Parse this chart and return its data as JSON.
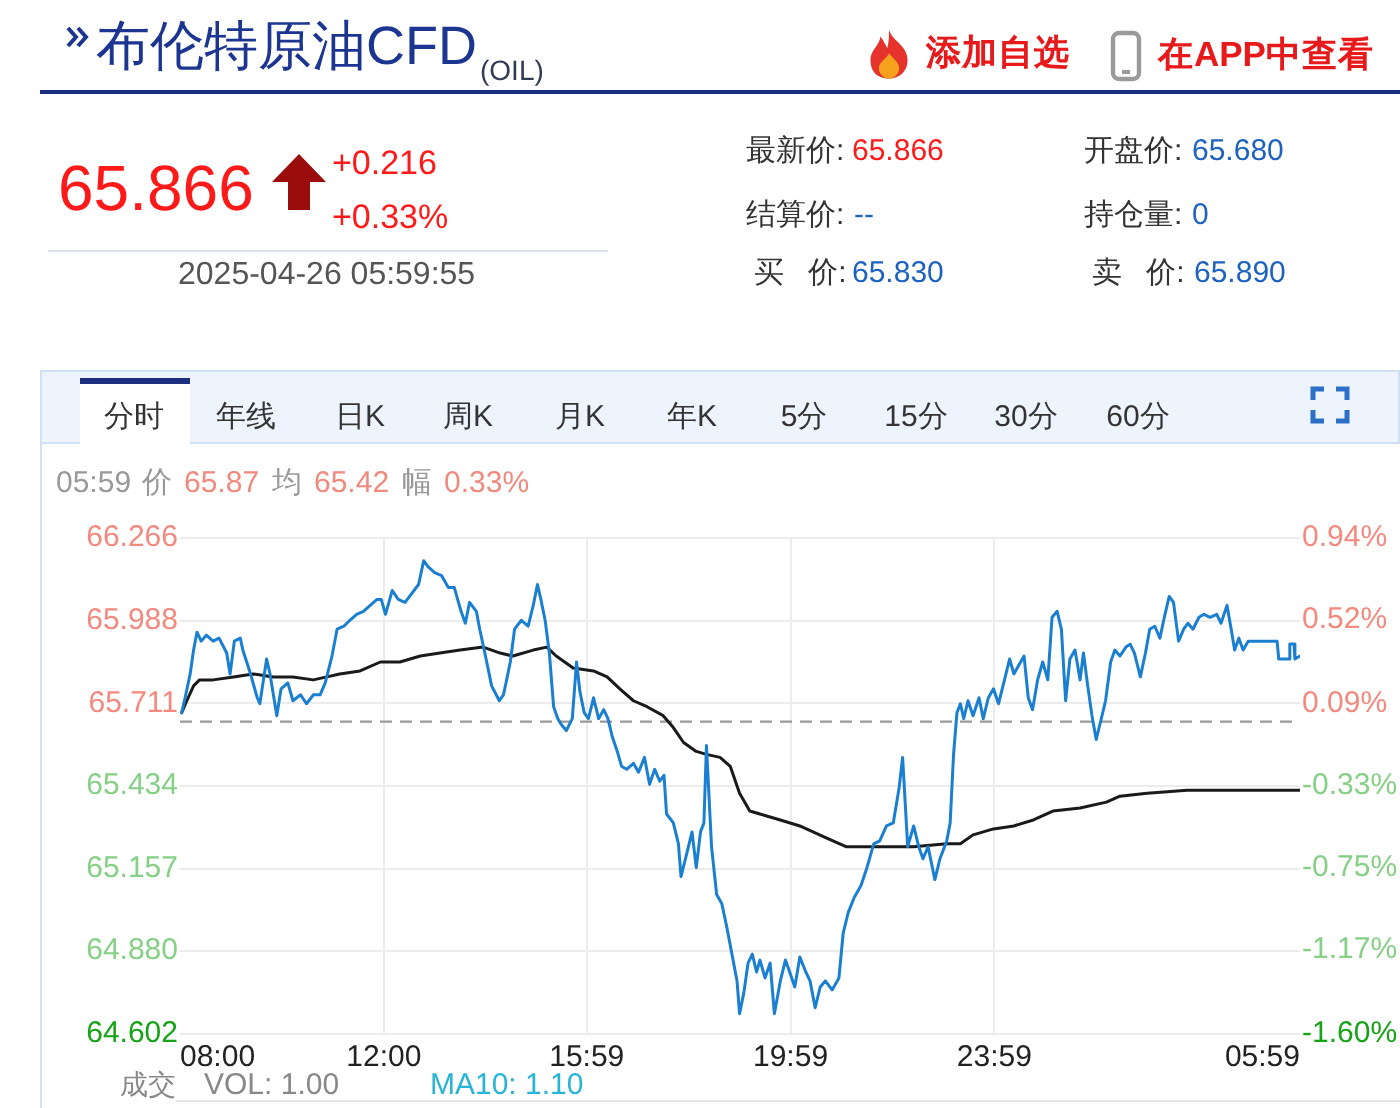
{
  "chart_data": {
    "type": "line",
    "title": "布伦特原油CFD",
    "subtitle": "(OIL)",
    "xlim": [
      "2025-04-25T08:00",
      "2025-04-26T05:59"
    ],
    "xticks": [
      {
        "value": "2025-04-25T08:00",
        "label": "08:00"
      },
      {
        "value": "2025-04-25T12:00",
        "label": "12:00"
      },
      {
        "value": "2025-04-25T15:59",
        "label": "15:59"
      },
      {
        "value": "2025-04-25T19:59",
        "label": "19:59"
      },
      {
        "value": "2025-04-25T23:59",
        "label": "23:59"
      },
      {
        "value": "2025-04-26T05:59",
        "label": "05:59"
      }
    ],
    "ylim": [
      64.602,
      66.266
    ],
    "yticks": [
      66.266,
      65.988,
      65.711,
      65.434,
      65.157,
      {
        "value": 64.88,
        "label": "64.880"
      },
      64.602
    ],
    "y2lim": [
      -1.6,
      0.94
    ],
    "y2ticks": [
      {
        "value": 0.94,
        "label": "0.94%"
      },
      {
        "value": 0.52,
        "label": "0.52%"
      },
      {
        "value": 0.09,
        "label": "0.09%"
      },
      {
        "value": -0.33,
        "label": "-0.33%"
      },
      {
        "value": -0.75,
        "label": "-0.75%"
      },
      {
        "value": -1.17,
        "label": "-1.17%"
      },
      {
        "value": -1.6,
        "label": "-1.60%"
      }
    ],
    "grid": true,
    "marker": "none",
    "ref_lines": [
      {
        "axis": "y",
        "value": 65.65,
        "line_style": "dashed",
        "color": "#999999"
      }
    ],
    "series": [
      {
        "color": "#1b7fd1",
        "x": [
          "2025-04-25T08:02",
          "2025-04-25T08:06",
          "2025-04-25T08:12",
          "2025-04-25T08:16",
          "2025-04-25T08:20",
          "2025-04-25T08:25",
          "2025-04-25T08:31",
          "2025-04-25T08:39",
          "2025-04-25T08:46",
          "2025-04-25T08:55",
          "2025-04-25T08:59",
          "2025-04-25T09:04",
          "2025-04-25T09:11",
          "2025-04-25T09:14",
          "2025-04-25T09:22",
          "2025-04-25T09:31",
          "2025-04-25T09:34",
          "2025-04-25T09:42",
          "2025-04-25T09:46",
          "2025-04-25T09:54",
          "2025-04-25T09:59",
          "2025-04-25T10:07",
          "2025-04-25T10:13",
          "2025-04-25T10:22",
          "2025-04-25T10:29",
          "2025-04-25T10:37",
          "2025-04-25T10:45",
          "2025-04-25T10:51",
          "2025-04-25T10:59",
          "2025-04-25T11:05",
          "2025-04-25T11:13",
          "2025-04-25T11:20",
          "2025-04-25T11:28",
          "2025-04-25T11:36",
          "2025-04-25T11:44",
          "2025-04-25T11:52",
          "2025-04-25T11:57",
          "2025-04-25T12:02",
          "2025-04-25T12:10",
          "2025-04-25T12:17",
          "2025-04-25T12:25",
          "2025-04-25T12:33",
          "2025-04-25T12:41",
          "2025-04-25T12:47",
          "2025-04-25T12:52",
          "2025-04-25T13:00",
          "2025-04-25T13:08",
          "2025-04-25T13:16",
          "2025-04-25T13:23",
          "2025-04-25T13:31",
          "2025-04-25T13:36",
          "2025-04-25T13:41",
          "2025-04-25T13:49",
          "2025-04-25T13:53",
          "2025-04-25T13:59",
          "2025-04-25T14:07",
          "2025-04-25T14:16",
          "2025-04-25T14:21",
          "2025-04-25T14:29",
          "2025-04-25T14:34",
          "2025-04-25T14:42",
          "2025-04-25T14:50",
          "2025-04-25T14:56",
          "2025-04-25T15:01",
          "2025-04-25T15:05",
          "2025-04-25T15:10",
          "2025-04-25T15:15",
          "2025-04-25T15:20",
          "2025-04-25T15:25",
          "2025-04-25T15:29",
          "2025-04-25T15:35",
          "2025-04-25T15:42",
          "2025-04-25T15:47",
          "2025-04-25T15:51",
          "2025-04-25T15:56",
          "2025-04-25T16:01",
          "2025-04-25T16:07",
          "2025-04-25T16:13",
          "2025-04-25T16:19",
          "2025-04-25T16:24",
          "2025-04-25T16:29",
          "2025-04-25T16:35",
          "2025-04-25T16:40",
          "2025-04-25T16:46",
          "2025-04-25T16:54",
          "2025-04-25T17:00",
          "2025-04-25T17:07",
          "2025-04-25T17:13",
          "2025-04-25T17:19",
          "2025-04-25T17:25",
          "2025-04-25T17:30",
          "2025-04-25T17:33",
          "2025-04-25T17:41",
          "2025-04-25T17:47",
          "2025-04-25T17:50",
          "2025-04-25T17:57",
          "2025-04-25T18:03",
          "2025-04-25T18:08",
          "2025-04-25T18:13",
          "2025-04-25T18:17",
          "2025-04-25T18:20",
          "2025-04-25T18:26",
          "2025-04-25T18:32",
          "2025-04-25T18:38",
          "2025-04-25T18:44",
          "2025-04-25T18:50",
          "2025-04-25T18:56",
          "2025-04-25T18:59",
          "2025-04-25T19:04",
          "2025-04-25T19:09",
          "2025-04-25T19:14",
          "2025-04-25T19:19",
          "2025-04-25T19:23",
          "2025-04-25T19:29",
          "2025-04-25T19:35",
          "2025-04-25T19:40",
          "2025-04-25T19:47",
          "2025-04-25T19:53",
          "2025-04-25T19:58",
          "2025-04-25T20:04",
          "2025-04-25T20:10",
          "2025-04-25T20:17",
          "2025-04-25T20:22",
          "2025-04-25T20:28",
          "2025-04-25T20:34",
          "2025-04-25T20:40",
          "2025-04-25T20:48",
          "2025-04-25T20:56",
          "2025-04-25T21:01",
          "2025-04-25T21:07",
          "2025-04-25T21:14",
          "2025-04-25T21:22",
          "2025-04-25T21:29",
          "2025-04-25T21:37",
          "2025-04-25T21:44",
          "2025-04-25T21:52",
          "2025-04-25T22:00",
          "2025-04-25T22:07",
          "2025-04-25T22:11",
          "2025-04-25T22:17",
          "2025-04-25T22:24",
          "2025-04-25T22:30",
          "2025-04-25T22:35",
          "2025-04-25T22:41",
          "2025-04-25T22:49",
          "2025-04-25T22:55",
          "2025-04-25T23:03",
          "2025-04-25T23:07",
          "2025-04-25T23:11",
          "2025-04-25T23:15",
          "2025-04-25T23:19",
          "2025-04-25T23:23",
          "2025-04-25T23:28",
          "2025-04-25T23:34",
          "2025-04-25T23:41",
          "2025-04-25T23:46",
          "2025-04-25T23:52",
          "2025-04-25T23:58",
          "2025-04-26T00:04",
          "2025-04-26T00:11",
          "2025-04-26T00:17",
          "2025-04-26T00:22",
          "2025-04-26T00:28",
          "2025-04-26T00:34",
          "2025-04-26T00:39",
          "2025-04-26T00:44",
          "2025-04-26T00:50",
          "2025-04-26T00:56",
          "2025-04-26T01:02",
          "2025-04-26T01:07",
          "2025-04-26T01:13",
          "2025-04-26T01:18",
          "2025-04-26T01:23",
          "2025-04-26T01:28",
          "2025-04-26T01:34",
          "2025-04-26T01:40",
          "2025-04-26T01:44",
          "2025-04-26T01:49",
          "2025-04-26T01:54",
          "2025-04-26T01:59",
          "2025-04-26T02:05",
          "2025-04-26T02:10",
          "2025-04-26T02:16",
          "2025-04-26T02:21",
          "2025-04-26T02:27",
          "2025-04-26T02:34",
          "2025-04-26T02:39",
          "2025-04-26T02:44",
          "2025-04-26T02:51",
          "2025-04-26T02:57",
          "2025-04-26T03:02",
          "2025-04-26T03:08",
          "2025-04-26T03:14",
          "2025-04-26T03:20",
          "2025-04-26T03:25",
          "2025-04-26T03:30",
          "2025-04-26T03:36",
          "2025-04-26T03:42",
          "2025-04-26T03:47",
          "2025-04-26T03:53",
          "2025-04-26T04:00",
          "2025-04-26T04:06",
          "2025-04-26T04:13",
          "2025-04-26T04:21",
          "2025-04-26T04:26",
          "2025-04-26T04:33",
          "2025-04-26T04:38",
          "2025-04-26T04:42",
          "2025-04-26T04:47",
          "2025-04-26T04:52",
          "2025-04-26T04:58",
          "2025-04-26T05:08",
          "2025-04-26T05:20",
          "2025-04-26T05:32",
          "2025-04-26T05:34",
          "2025-04-26T05:45",
          "2025-04-26T05:47",
          "2025-04-26T05:52",
          "2025-04-26T05:53",
          "2025-04-26T05:59"
        ],
        "values": [
          65.68,
          65.73,
          65.81,
          65.89,
          65.95,
          65.92,
          65.94,
          65.92,
          65.93,
          65.88,
          65.81,
          65.92,
          65.93,
          65.89,
          65.82,
          65.73,
          65.71,
          65.86,
          65.81,
          65.67,
          65.76,
          65.78,
          65.72,
          65.74,
          65.71,
          65.74,
          65.74,
          65.78,
          65.87,
          65.96,
          65.97,
          65.99,
          66.01,
          66.02,
          66.04,
          66.06,
          66.06,
          66.01,
          66.09,
          66.06,
          66.05,
          66.08,
          66.11,
          66.19,
          66.17,
          66.15,
          66.14,
          66.1,
          66.1,
          66.02,
          65.98,
          66.05,
          66.02,
          65.96,
          65.88,
          65.77,
          65.72,
          65.74,
          65.85,
          65.96,
          65.99,
          65.97,
          66.04,
          66.11,
          66.06,
          65.99,
          65.88,
          65.7,
          65.66,
          65.64,
          65.62,
          65.66,
          65.85,
          65.75,
          65.68,
          65.66,
          65.73,
          65.66,
          65.69,
          65.66,
          65.6,
          65.55,
          65.5,
          65.49,
          65.51,
          65.48,
          65.53,
          65.44,
          65.49,
          65.45,
          65.47,
          65.34,
          65.31,
          65.24,
          65.13,
          65.21,
          65.28,
          65.16,
          65.28,
          65.31,
          65.57,
          65.23,
          65.07,
          65.04,
          64.96,
          64.87,
          64.78,
          64.67,
          64.74,
          64.84,
          64.87,
          64.81,
          64.85,
          64.79,
          64.84,
          64.67,
          64.78,
          64.85,
          64.81,
          64.76,
          64.86,
          64.81,
          64.78,
          64.69,
          64.76,
          64.78,
          64.75,
          64.79,
          64.94,
          65.01,
          65.06,
          65.1,
          65.16,
          65.24,
          65.25,
          65.3,
          65.31,
          65.43,
          65.53,
          65.23,
          65.3,
          65.23,
          65.19,
          65.23,
          65.12,
          65.19,
          65.25,
          65.31,
          65.54,
          65.68,
          65.71,
          65.66,
          65.72,
          65.67,
          65.73,
          65.66,
          65.73,
          65.76,
          65.71,
          65.79,
          65.86,
          65.81,
          65.84,
          65.87,
          65.73,
          65.69,
          65.79,
          65.85,
          65.79,
          66.0,
          66.02,
          65.96,
          65.72,
          65.86,
          65.89,
          65.79,
          65.88,
          65.77,
          65.67,
          65.59,
          65.66,
          65.72,
          65.85,
          65.89,
          65.87,
          65.9,
          65.91,
          65.88,
          65.8,
          65.88,
          65.96,
          65.97,
          65.93,
          66.01,
          66.07,
          66.05,
          65.92,
          65.96,
          65.98,
          65.96,
          66.0,
          66.01,
          66.0,
          66.01,
          65.98,
          66.04,
          65.96,
          65.89,
          65.93,
          65.89,
          65.92,
          65.92,
          65.92,
          65.92,
          65.86,
          65.86,
          65.91,
          65.91,
          65.86,
          65.87
        ]
      },
      {
        "color": "#1a1a1a",
        "x": [
          "2025-04-25T08:02",
          "2025-04-25T08:08",
          "2025-04-25T08:16",
          "2025-04-25T08:23",
          "2025-04-25T08:39",
          "2025-04-25T09:03",
          "2025-04-25T09:26",
          "2025-04-25T09:50",
          "2025-04-25T10:13",
          "2025-04-25T10:37",
          "2025-04-25T10:53",
          "2025-04-25T11:08",
          "2025-04-25T11:32",
          "2025-04-25T11:56",
          "2025-04-25T12:19",
          "2025-04-25T12:43",
          "2025-04-25T13:06",
          "2025-04-25T13:30",
          "2025-04-25T13:57",
          "2025-04-25T14:17",
          "2025-04-25T14:32",
          "2025-04-25T14:56",
          "2025-04-25T15:12",
          "2025-04-25T15:23",
          "2025-04-25T15:43",
          "2025-04-25T16:07",
          "2025-04-25T16:23",
          "2025-04-25T16:38",
          "2025-04-25T16:54",
          "2025-04-25T17:10",
          "2025-04-25T17:29",
          "2025-04-25T17:41",
          "2025-04-25T17:53",
          "2025-04-25T18:08",
          "2025-04-25T18:20",
          "2025-04-25T18:36",
          "2025-04-25T18:48",
          "2025-04-25T18:59",
          "2025-04-25T19:11",
          "2025-04-25T19:23",
          "2025-04-25T19:47",
          "2025-04-25T20:10",
          "2025-04-25T20:41",
          "2025-04-25T21:05",
          "2025-04-25T21:37",
          "2025-04-25T22:24",
          "2025-04-25T23:03",
          "2025-04-25T23:19",
          "2025-04-25T23:34",
          "2025-04-25T23:58",
          "2025-04-26T00:22",
          "2025-04-26T00:45",
          "2025-04-26T01:08",
          "2025-04-26T01:40",
          "2025-04-26T02:11",
          "2025-04-26T02:27",
          "2025-04-26T02:59",
          "2025-04-26T03:46",
          "2025-04-26T04:56",
          "2025-04-26T05:59"
        ],
        "values": [
          65.68,
          65.72,
          65.77,
          65.79,
          65.79,
          65.8,
          65.81,
          65.8,
          65.8,
          65.79,
          65.8,
          65.81,
          65.82,
          65.85,
          65.85,
          65.87,
          65.88,
          65.89,
          65.9,
          65.88,
          65.87,
          65.89,
          65.9,
          65.87,
          65.83,
          65.82,
          65.8,
          65.76,
          65.72,
          65.7,
          65.67,
          65.63,
          65.58,
          65.55,
          65.54,
          65.53,
          65.5,
          65.41,
          65.35,
          65.34,
          65.32,
          65.3,
          65.26,
          65.23,
          65.23,
          65.23,
          65.24,
          65.24,
          65.27,
          65.29,
          65.3,
          65.32,
          65.35,
          65.36,
          65.38,
          65.4,
          65.41,
          65.42,
          65.42,
          65.42
        ]
      }
    ],
    "annotations": [
      "添加自选",
      "在APP中查看",
      "65.866",
      "+0.216",
      "+0.33%",
      "2025-04-26 05:59:55",
      "最新价:",
      "65.866",
      "开盘价:",
      "65.680",
      "结算价:",
      "--",
      "持仓量:",
      "0",
      "买 价:",
      "65.830",
      "卖 价:",
      "65.890",
      "分时",
      "年线",
      "日K",
      "周K",
      "月K",
      "年K",
      "5分",
      "15分",
      "30分",
      "60分",
      "05:59",
      "价",
      "65.87",
      "均",
      "65.42",
      "幅",
      "0.33%",
      "成交",
      "VOL: 1.00",
      "MA10: 1.10"
    ]
  }
}
